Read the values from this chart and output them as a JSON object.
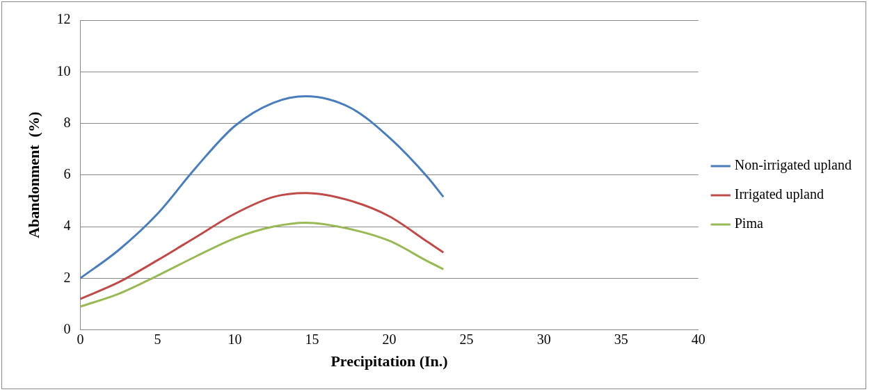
{
  "chart_data": {
    "type": "line",
    "xlabel": "Precipitation (In.)",
    "ylabel": "Abandonment  (%)",
    "xlim": [
      0,
      40
    ],
    "xticks": [
      0,
      5,
      10,
      15,
      20,
      25,
      30,
      35,
      40
    ],
    "ylim": [
      0,
      12
    ],
    "yticks": [
      0,
      2,
      4,
      6,
      8,
      10,
      12
    ],
    "grid": "y",
    "legend": "right",
    "marker": "none",
    "line_style": "solid",
    "x": [
      0,
      2.5,
      5,
      7.5,
      10,
      12.5,
      14.6,
      17.5,
      20,
      22.5,
      23.5
    ],
    "series": [
      {
        "name": "Non-irrigated upland",
        "color": "#4a7ebb",
        "values": [
          2.0,
          3.1,
          4.5,
          6.3,
          7.9,
          8.8,
          9.05,
          8.6,
          7.45,
          5.9,
          5.15
        ]
      },
      {
        "name": "Irrigated upland",
        "color": "#be4b48",
        "values": [
          1.2,
          1.85,
          2.7,
          3.6,
          4.5,
          5.15,
          5.3,
          5.0,
          4.4,
          3.4,
          3.0
        ]
      },
      {
        "name": "Pima",
        "color": "#98b954",
        "values": [
          0.9,
          1.4,
          2.1,
          2.85,
          3.55,
          4.0,
          4.15,
          3.9,
          3.45,
          2.65,
          2.35
        ]
      }
    ]
  }
}
